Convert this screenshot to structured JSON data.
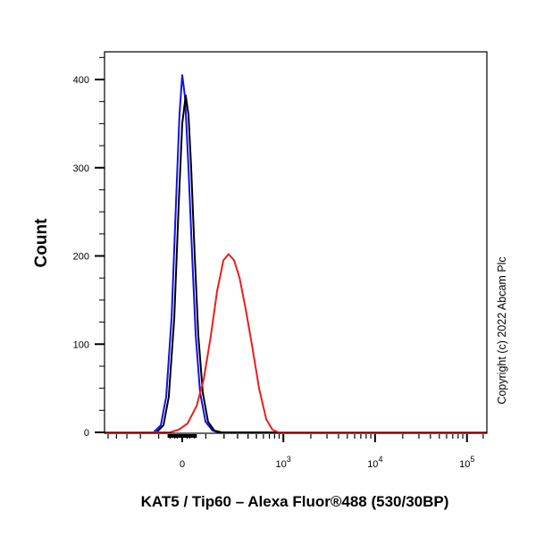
{
  "chart_data": {
    "type": "line",
    "title": "",
    "xlabel": "KAT5 / Tip60 – Alexa Fluor®488 (530/30BP)",
    "ylabel": "Count",
    "x_scale": "biexponential",
    "xlim": [
      -540,
      165000
    ],
    "ylim": [
      0,
      431
    ],
    "x_ticks": [
      {
        "value": 0,
        "base": "0",
        "exp": ""
      },
      {
        "value": 1000,
        "base": "10",
        "exp": "3"
      },
      {
        "value": 10000,
        "base": "10",
        "exp": "4"
      },
      {
        "value": 100000,
        "base": "10",
        "exp": "5"
      }
    ],
    "y_ticks": [
      0,
      100,
      200,
      300,
      400
    ],
    "grid": false,
    "legend": "none",
    "series": [
      {
        "color": "#1010ee",
        "points": [
          [
            -540,
            0
          ],
          [
            -125,
            0
          ],
          [
            -90,
            8
          ],
          [
            -66,
            40
          ],
          [
            -43,
            130
          ],
          [
            -25,
            260
          ],
          [
            -11,
            360
          ],
          [
            0,
            405
          ],
          [
            11,
            380
          ],
          [
            25,
            300
          ],
          [
            40,
            200
          ],
          [
            55,
            110
          ],
          [
            74,
            45
          ],
          [
            99,
            12
          ],
          [
            134,
            2
          ],
          [
            168,
            0
          ],
          [
            165000,
            0
          ]
        ]
      },
      {
        "color": "#000000",
        "points": [
          [
            -540,
            0
          ],
          [
            -111,
            0
          ],
          [
            -78,
            8
          ],
          [
            -55,
            40
          ],
          [
            -32,
            130
          ],
          [
            -14,
            260
          ],
          [
            0,
            350
          ],
          [
            14,
            382
          ],
          [
            25,
            360
          ],
          [
            36,
            300
          ],
          [
            51,
            200
          ],
          [
            66,
            110
          ],
          [
            86,
            45
          ],
          [
            111,
            12
          ],
          [
            143,
            2
          ],
          [
            184,
            0
          ],
          [
            165000,
            0
          ]
        ]
      },
      {
        "color": "#ee1c1c",
        "points": [
          [
            -540,
            0
          ],
          [
            -51,
            0
          ],
          [
            -14,
            3
          ],
          [
            21,
            10
          ],
          [
            59,
            30
          ],
          [
            90,
            60
          ],
          [
            125,
            110
          ],
          [
            158,
            160
          ],
          [
            196,
            195
          ],
          [
            230,
            202
          ],
          [
            272,
            195
          ],
          [
            317,
            175
          ],
          [
            375,
            140
          ],
          [
            443,
            100
          ],
          [
            536,
            50
          ],
          [
            645,
            15
          ],
          [
            758,
            3
          ],
          [
            890,
            0
          ],
          [
            165000,
            0
          ]
        ]
      }
    ],
    "annotation": "Copyright (c) 2022 Abcam Plc"
  }
}
